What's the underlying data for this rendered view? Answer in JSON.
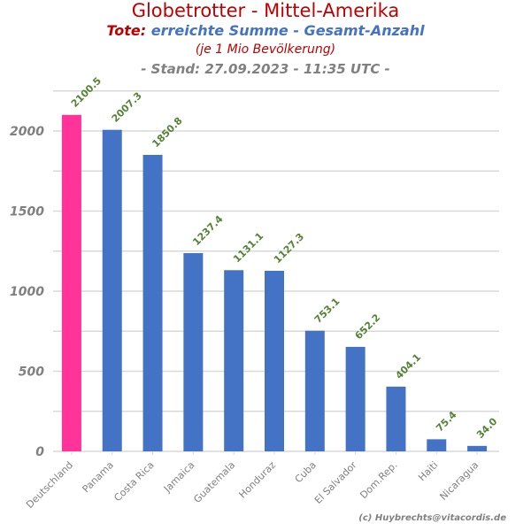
{
  "title": "Globetrotter - Mittel-Amerika",
  "subtitle": {
    "prefix": "Tote:",
    "main": "erreichte Summe - Gesamt-Anzahl"
  },
  "note": "(je 1 Mio Bevölkerung)",
  "stand": "- Stand: 27.09.2023 - 11:35 UTC -",
  "credit": "(c) Huybrechts@vitacordis.de",
  "colors": {
    "title": "#c00000",
    "subtitle": "#4472c4",
    "highlight_bar": "#ff3399",
    "bar": "#4472c4",
    "data_label": "#548235",
    "axis_text": "#808080",
    "grid": "#d9d9d9"
  },
  "chart_data": {
    "type": "bar",
    "categories": [
      "Deutschland",
      "Panama",
      "Costa Rica",
      "Jamaica",
      "Guatemala",
      "Honduraz",
      "Cuba",
      "El Salvador",
      "Dom.Rep.",
      "Haiti",
      "Nicaragua"
    ],
    "values": [
      2100.5,
      2007.3,
      1850.8,
      1237.4,
      1131.1,
      1127.3,
      753.1,
      652.2,
      404.1,
      75.4,
      34.0
    ],
    "labels": [
      "2100.5",
      "2007.3",
      "1850.8",
      "1237.4",
      "1131.1",
      "1127.3",
      "753.1",
      "652.2",
      "404.1",
      "75.4",
      "34.0"
    ],
    "highlight": "Deutschland",
    "ylim": [
      0,
      2250
    ],
    "yticks": [
      0,
      500,
      1000,
      1500,
      2000
    ],
    "ytick_labels": [
      "0",
      "500",
      "1000",
      "1500",
      "2000"
    ],
    "minor_grid_step": 250,
    "grid": true,
    "xlabel": "",
    "ylabel": ""
  }
}
